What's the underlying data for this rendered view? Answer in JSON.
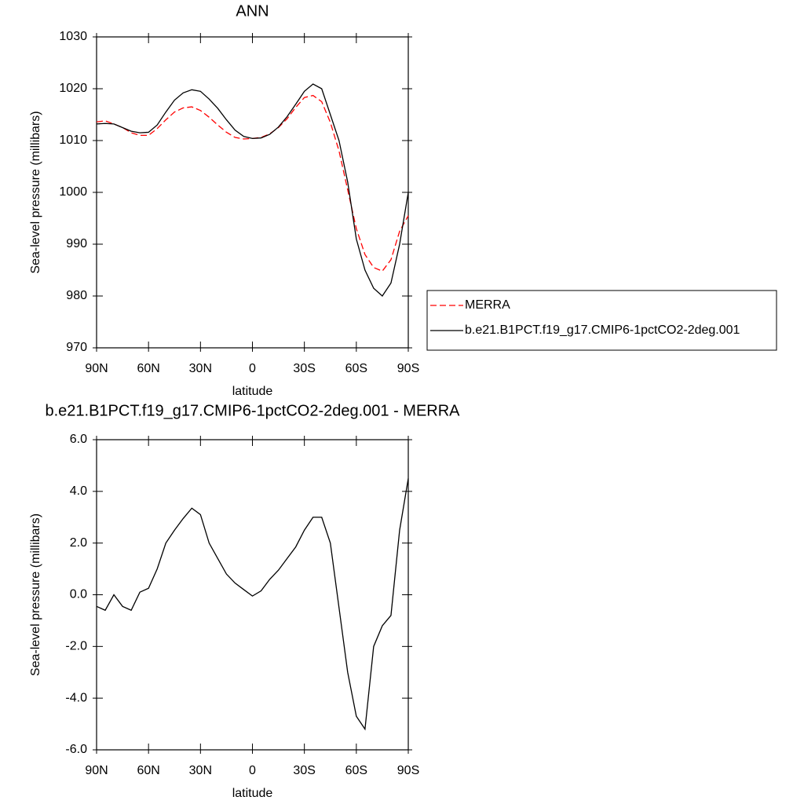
{
  "chart_data": [
    {
      "type": "line",
      "title": "ANN",
      "xlabel": "latitude",
      "ylabel": "Sea-level pressure (millibars)",
      "x": [
        90,
        85,
        80,
        75,
        70,
        65,
        60,
        55,
        50,
        45,
        40,
        35,
        30,
        25,
        20,
        15,
        10,
        5,
        0,
        -5,
        -10,
        -15,
        -20,
        -25,
        -30,
        -35,
        -40,
        -45,
        -50,
        -55,
        -60,
        -65,
        -70,
        -75,
        -80,
        -85,
        -90
      ],
      "xlim": [
        90,
        -90
      ],
      "xticks": [
        {
          "value": 90,
          "label": "90N"
        },
        {
          "value": 60,
          "label": "60N"
        },
        {
          "value": 30,
          "label": "30N"
        },
        0,
        {
          "value": -30,
          "label": "30S"
        },
        {
          "value": -60,
          "label": "60S"
        },
        {
          "value": -90,
          "label": "90S"
        }
      ],
      "ylim": [
        970,
        1030
      ],
      "yticks": [
        970,
        980,
        990,
        1000,
        1010,
        1020,
        1030
      ],
      "legend": "right",
      "series": [
        {
          "name": "MERRA",
          "color": "#ff0000",
          "dashed": true,
          "values": [
            1013.6,
            1013.8,
            1013.2,
            1012.5,
            1011.5,
            1011.0,
            1011.0,
            1012.3,
            1014.0,
            1015.5,
            1016.3,
            1016.5,
            1015.8,
            1014.5,
            1013.0,
            1011.6,
            1010.6,
            1010.3,
            1010.4,
            1010.6,
            1011.3,
            1012.5,
            1014.2,
            1016.4,
            1018.3,
            1018.7,
            1017.5,
            1013.5,
            1008.0,
            1000.5,
            993.0,
            988.0,
            985.5,
            984.8,
            987.0,
            992.5,
            995.5
          ]
        },
        {
          "name": "b.e21.B1PCT.f19_g17.CMIP6-1pctCO2-2deg.001",
          "color": "#000000",
          "dashed": false,
          "values": [
            1013.2,
            1013.3,
            1013.2,
            1012.5,
            1011.8,
            1011.5,
            1011.6,
            1013.0,
            1015.5,
            1017.8,
            1019.2,
            1019.8,
            1019.5,
            1018.0,
            1016.2,
            1014.0,
            1012.0,
            1010.8,
            1010.4,
            1010.5,
            1011.2,
            1012.6,
            1014.6,
            1017.0,
            1019.5,
            1020.9,
            1020.0,
            1015.0,
            1010.0,
            1002.0,
            991.0,
            985.0,
            981.5,
            980.0,
            982.5,
            990.0,
            1000.0
          ]
        }
      ]
    },
    {
      "type": "line",
      "title": "b.e21.B1PCT.f19_g17.CMIP6-1pctCO2-2deg.001 - MERRA",
      "xlabel": "latitude",
      "ylabel": "Sea-level pressure (millibars)",
      "x": [
        90,
        85,
        80,
        75,
        70,
        65,
        60,
        55,
        50,
        45,
        40,
        35,
        30,
        25,
        20,
        15,
        10,
        5,
        0,
        -5,
        -10,
        -15,
        -20,
        -25,
        -30,
        -35,
        -40,
        -45,
        -50,
        -55,
        -60,
        -65,
        -70,
        -75,
        -80,
        -85,
        -90
      ],
      "xlim": [
        90,
        -90
      ],
      "xticks": [
        {
          "value": 90,
          "label": "90N"
        },
        {
          "value": 60,
          "label": "60N"
        },
        {
          "value": 30,
          "label": "30N"
        },
        0,
        {
          "value": -30,
          "label": "30S"
        },
        {
          "value": -60,
          "label": "60S"
        },
        {
          "value": -90,
          "label": "90S"
        }
      ],
      "ylim": [
        -6,
        6
      ],
      "yticks": [
        {
          "value": -6,
          "label": "-6.0"
        },
        {
          "value": -4,
          "label": "-4.0"
        },
        {
          "value": -2,
          "label": "-2.0"
        },
        {
          "value": 0,
          "label": "0.0"
        },
        {
          "value": 2,
          "label": "2.0"
        },
        {
          "value": 4,
          "label": "4.0"
        },
        {
          "value": 6,
          "label": "6.0"
        }
      ],
      "series": [
        {
          "color": "#000000",
          "dashed": false,
          "values": [
            -0.45,
            -0.6,
            0.0,
            -0.45,
            -0.6,
            0.1,
            0.25,
            1.0,
            2.0,
            2.5,
            2.95,
            3.35,
            3.1,
            2.0,
            1.4,
            0.8,
            0.45,
            0.2,
            -0.05,
            0.15,
            0.6,
            0.95,
            1.4,
            1.85,
            2.5,
            3.0,
            3.0,
            2.0,
            -0.5,
            -3.0,
            -4.7,
            -5.2,
            -2.0,
            -1.2,
            -0.8,
            2.5,
            4.5
          ]
        }
      ]
    }
  ]
}
